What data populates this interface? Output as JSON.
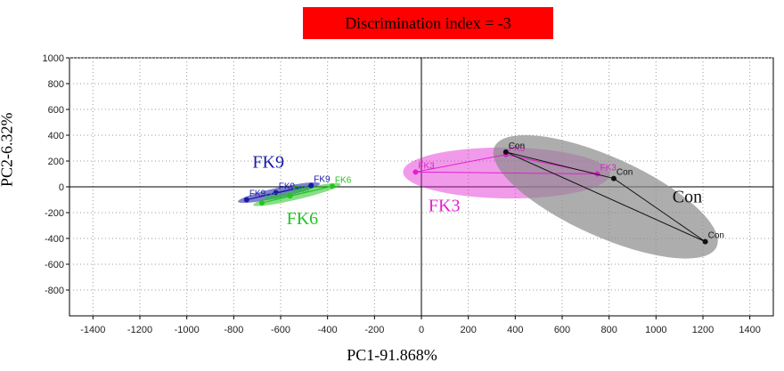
{
  "banner": "Discrimination index = -3",
  "colors": {
    "banner": "#ff0000",
    "FK9": "#1a1aa6",
    "FK6": "#22c422",
    "FK3": "#e020d0",
    "Con": "#111111",
    "Con_fill": "#8a8a8a"
  },
  "chart_data": {
    "type": "scatter",
    "title": "",
    "xlabel": "PC1-91.868%",
    "ylabel": "PC2-6.32%",
    "xlim": [
      -1500,
      1500
    ],
    "ylim": [
      -1000,
      1000
    ],
    "x_ticks": [
      -1400,
      -1200,
      -1000,
      -800,
      -600,
      -400,
      -200,
      0,
      200,
      400,
      600,
      800,
      1000,
      1200,
      1400
    ],
    "y_ticks": [
      1000,
      800,
      600,
      400,
      200,
      0,
      -200,
      -400,
      -600,
      -800
    ],
    "grid": true,
    "series": [
      {
        "name": "FK9",
        "points": [
          [
            -745,
            -100
          ],
          [
            -620,
            -45
          ],
          [
            -470,
            10
          ]
        ],
        "point_labels": [
          "FK9",
          "FK9",
          "FK9"
        ]
      },
      {
        "name": "FK6",
        "points": [
          [
            -680,
            -125
          ],
          [
            -560,
            -70
          ],
          [
            -380,
            5
          ]
        ],
        "point_labels": [
          "FK6",
          "FK6",
          "FK6"
        ]
      },
      {
        "name": "FK3",
        "points": [
          [
            -25,
            115
          ],
          [
            360,
            250
          ],
          [
            750,
            100
          ]
        ],
        "point_labels": [
          "FK3",
          "FK3",
          "FK3"
        ]
      },
      {
        "name": "Con",
        "points": [
          [
            360,
            270
          ],
          [
            820,
            65
          ],
          [
            1210,
            -425
          ]
        ],
        "point_labels": [
          "Con",
          "Con",
          "Con"
        ]
      }
    ],
    "group_labels": [
      {
        "text": "FK9",
        "x": -720,
        "y": 150
      },
      {
        "text": "FK6",
        "x": -575,
        "y": -290
      },
      {
        "text": "FK3",
        "x": 30,
        "y": -190
      },
      {
        "text": "Con",
        "x": 1070,
        "y": -120
      }
    ]
  }
}
